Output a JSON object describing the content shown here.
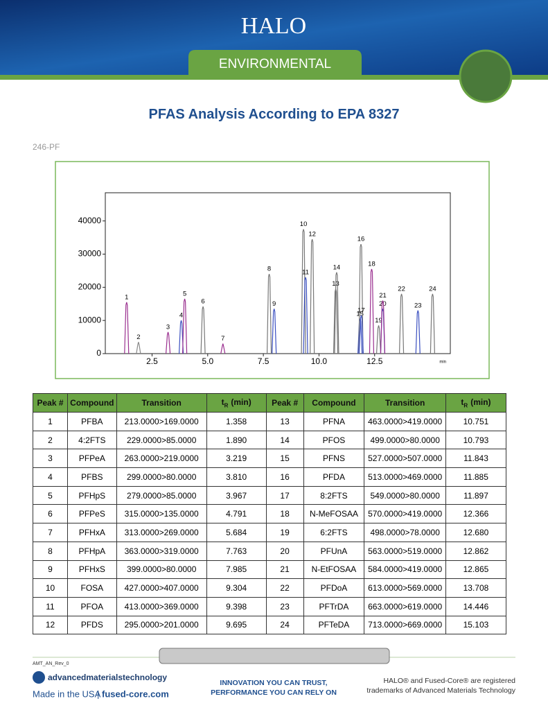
{
  "header": {
    "logo": "HALO",
    "banner": "ENVIRONMENTAL"
  },
  "title": "PFAS Analysis According to EPA 8327",
  "code": "246-PF",
  "chart_data": {
    "type": "chromatogram",
    "peak_labels": [
      "1",
      "2",
      "3",
      "4",
      "5",
      "6",
      "7",
      "8",
      "9",
      "10",
      "11",
      "12",
      "13",
      "14",
      "15",
      "16",
      "17",
      "18",
      "19",
      "20",
      "21",
      "22",
      "23",
      "24"
    ],
    "x": [
      1.358,
      1.89,
      3.219,
      3.81,
      3.967,
      4.791,
      5.684,
      7.763,
      7.985,
      9.304,
      9.398,
      9.695,
      10.751,
      10.793,
      11.843,
      11.885,
      11.897,
      12.366,
      12.68,
      12.862,
      12.865,
      13.708,
      14.446,
      15.103
    ],
    "values": [
      15500,
      3500,
      6500,
      10000,
      16500,
      14200,
      3000,
      24000,
      13500,
      37500,
      23000,
      34500,
      19500,
      24500,
      10500,
      33000,
      11500,
      25500,
      8500,
      13500,
      16000,
      18000,
      13000,
      18000
    ],
    "colors": [
      "#9a2f8f",
      "#888888",
      "#9a2f8f",
      "#3a4fc0",
      "#9a2f8f",
      "#777777",
      "#9a2f8f",
      "#777777",
      "#3a4fc0",
      "#777777",
      "#3a4fc0",
      "#777777",
      "#777777",
      "#777777",
      "#3a4fc0",
      "#777777",
      "#3a4fc0",
      "#9a2f8f",
      "#777777",
      "#3a4fc0",
      "#9a2f8f",
      "#777777",
      "#3a4fc0",
      "#777777"
    ],
    "xlim": [
      0.4,
      15.9
    ],
    "ylim": [
      0,
      48500
    ],
    "xticks": [
      2.5,
      {
        "value": 5,
        "label": "5.0"
      },
      7.5,
      {
        "value": 10,
        "label": "10.0"
      },
      12.5
    ],
    "yticks": [
      0,
      10000,
      20000,
      30000,
      40000
    ],
    "x_label": "min"
  },
  "table": {
    "headers": [
      "Peak #",
      "Compound",
      "Transition",
      {
        "t": "t",
        "sub": "R",
        "unit": "(min)"
      },
      "Peak #",
      "Compound",
      "Transition",
      {
        "t": "t",
        "sub": "R",
        "unit": "(min)"
      }
    ],
    "rows": [
      [
        "1",
        "PFBA",
        "213.0000>169.0000",
        "1.358",
        "13",
        "PFNA",
        "463.0000>419.0000",
        "10.751"
      ],
      [
        "2",
        "4:2FTS",
        "229.0000>85.0000",
        "1.890",
        "14",
        "PFOS",
        "499.0000>80.0000",
        "10.793"
      ],
      [
        "3",
        "PFPeA",
        "263.0000>219.0000",
        "3.219",
        "15",
        "PFNS",
        "527.0000>507.0000",
        "11.843"
      ],
      [
        "4",
        "PFBS",
        "299.0000>80.0000",
        "3.810",
        "16",
        "PFDA",
        "513.0000>469.0000",
        "11.885"
      ],
      [
        "5",
        "PFHpS",
        "279.0000>85.0000",
        "3.967",
        "17",
        "8:2FTS",
        "549.0000>80.0000",
        "11.897"
      ],
      [
        "6",
        "PFPeS",
        "315.0000>135.0000",
        "4.791",
        "18",
        "N-MeFOSAA",
        "570.0000>419.0000",
        "12.366"
      ],
      [
        "7",
        "PFHxA",
        "313.0000>269.0000",
        "5.684",
        "19",
        "6:2FTS",
        "498.0000>78.0000",
        "12.680"
      ],
      [
        "8",
        "PFHpA",
        "363.0000>319.0000",
        "7.763",
        "20",
        "PFUnA",
        "563.0000>519.0000",
        "12.862"
      ],
      [
        "9",
        "PFHxS",
        "399.0000>80.0000",
        "7.985",
        "21",
        "N-EtFOSAA",
        "584.0000>419.0000",
        "12.865"
      ],
      [
        "10",
        "FOSA",
        "427.0000>407.0000",
        "9.304",
        "22",
        "PFDoA",
        "613.0000>569.0000",
        "13.708"
      ],
      [
        "11",
        "PFOA",
        "413.0000>369.0000",
        "9.398",
        "23",
        "PFTrDA",
        "663.0000>619.0000",
        "14.446"
      ],
      [
        "12",
        "PFDS",
        "295.0000>201.0000",
        "9.695",
        "24",
        "PFTeDA",
        "713.0000>669.0000",
        "15.103"
      ]
    ]
  },
  "footer": {
    "rev": "AMT_AN_Rev_0",
    "company": "advancedmaterialstechnology",
    "made": "Made in the USA",
    "site": "fused-core.com",
    "slogan1": "INNOVATION YOU CAN TRUST,",
    "slogan2": "PERFORMANCE YOU CAN RELY ON",
    "tm1": "HALO® and Fused-Core® are registered",
    "tm2": "trademarks of Advanced Materials Technology"
  }
}
